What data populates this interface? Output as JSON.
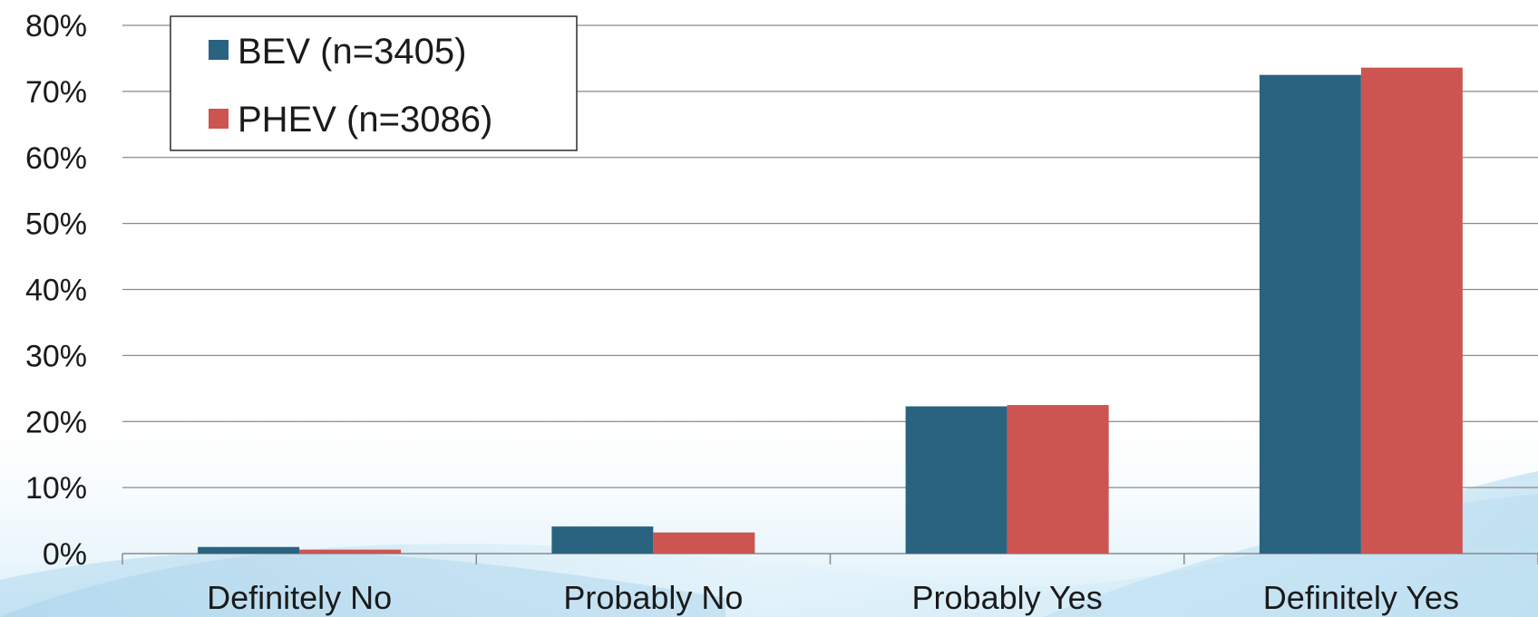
{
  "chart_data": {
    "type": "bar",
    "title": "",
    "xlabel": "",
    "ylabel": "",
    "categories": [
      "Definitely No",
      "Probably No",
      "Probably Yes",
      "Definitely Yes"
    ],
    "series": [
      {
        "name": "BEV (n=3405)",
        "color": "#2a6380",
        "values": [
          1.0,
          4.1,
          22.3,
          72.5
        ]
      },
      {
        "name": "PHEV (n=3086)",
        "color": "#cc5552",
        "values": [
          0.6,
          3.2,
          22.5,
          73.6
        ]
      }
    ],
    "ylim": [
      0,
      80
    ],
    "ytick_step": 10,
    "ytick_format": "percent",
    "grid": true,
    "legend_position": "top-left",
    "background": "light blue wave gradient near bottom"
  }
}
